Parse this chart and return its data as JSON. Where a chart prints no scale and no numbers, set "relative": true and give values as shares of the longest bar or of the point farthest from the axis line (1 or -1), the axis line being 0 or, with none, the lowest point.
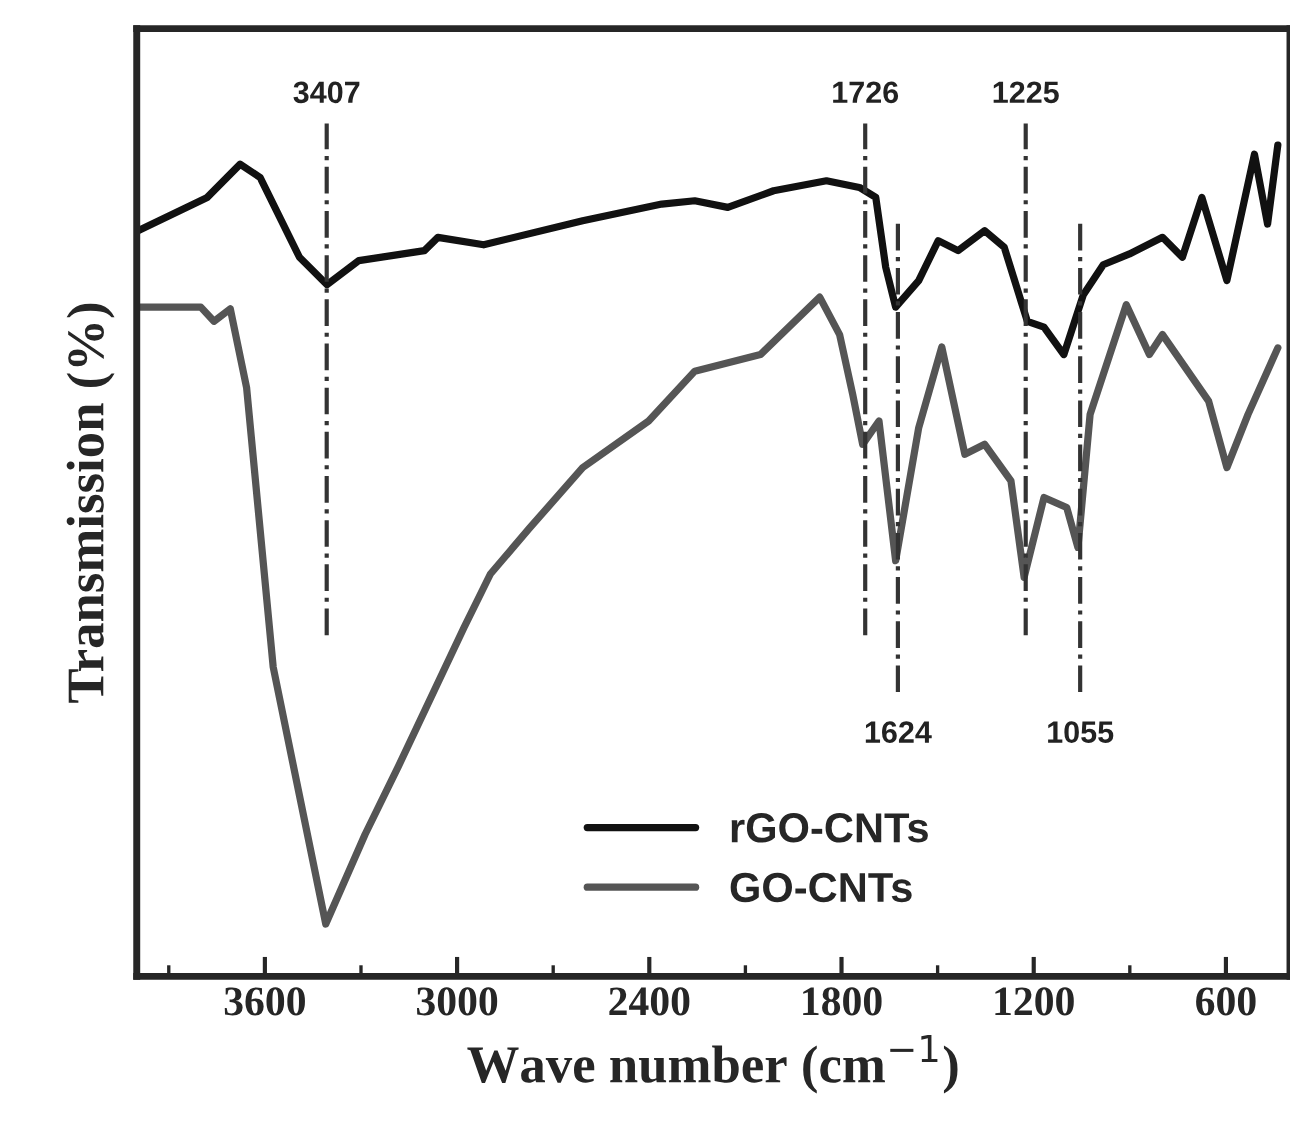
{
  "chart_data": {
    "type": "line",
    "relative": true,
    "xlabel": "Wave number (cm$^{−1}$)",
    "ylabel": "Transmission (%)",
    "xlim": [
      4000,
      400
    ],
    "xticks": [
      3600,
      3000,
      2400,
      1800,
      1200,
      600
    ],
    "legend": "bottom right",
    "grid": false,
    "line_style": "solid",
    "marker": "none",
    "series": [
      {
        "name": "rGO-CNTs",
        "color": "#111111",
        "x": [
          3996,
          3780,
          3677,
          3615,
          3492,
          3406,
          3307,
          3102,
          3060,
          2917,
          2608,
          2361,
          2258,
          2155,
          2012,
          1847,
          1744,
          1693,
          1662,
          1631,
          1559,
          1498,
          1436,
          1353,
          1292,
          1220,
          1168,
          1106,
          1045,
          983,
          901,
          798,
          736,
          675,
          597,
          511,
          470,
          438
        ],
        "values": [
          0.897,
          0.937,
          0.977,
          0.961,
          0.865,
          0.832,
          0.861,
          0.873,
          0.889,
          0.88,
          0.909,
          0.929,
          0.933,
          0.925,
          0.945,
          0.957,
          0.949,
          0.937,
          0.853,
          0.805,
          0.837,
          0.885,
          0.873,
          0.897,
          0.877,
          0.788,
          0.781,
          0.748,
          0.82,
          0.856,
          0.869,
          0.889,
          0.865,
          0.937,
          0.837,
          0.989,
          0.905,
          1.0
        ]
      },
      {
        "name": "GO-CNTs",
        "color": "#555555",
        "x": [
          3996,
          3800,
          3759,
          3708,
          3657,
          3574,
          3410,
          3287,
          3184,
          2978,
          2896,
          2772,
          2608,
          2402,
          2258,
          2053,
          1868,
          1806,
          1765,
          1734,
          1683,
          1631,
          1559,
          1487,
          1415,
          1353,
          1271,
          1230,
          1168,
          1097,
          1062,
          1024,
          911,
          839,
          798,
          654,
          597,
          531,
          438
        ],
        "values": [
          0.805,
          0.805,
          0.788,
          0.803,
          0.708,
          0.372,
          0.063,
          0.171,
          0.252,
          0.42,
          0.484,
          0.54,
          0.612,
          0.668,
          0.728,
          0.748,
          0.817,
          0.772,
          0.7,
          0.64,
          0.668,
          0.5,
          0.66,
          0.757,
          0.628,
          0.64,
          0.596,
          0.48,
          0.576,
          0.564,
          0.516,
          0.676,
          0.808,
          0.748,
          0.772,
          0.692,
          0.612,
          0.676,
          0.756
        ]
      }
    ],
    "ref_lines": [
      {
        "axis": "x",
        "value": 3407,
        "label": "3407",
        "line_style": "dashdot",
        "color": "#333333"
      },
      {
        "axis": "x",
        "value": 1726,
        "label": "1726",
        "line_style": "dashdot",
        "color": "#333333"
      },
      {
        "axis": "x",
        "value": 1624,
        "label": "1624",
        "line_style": "dashdot",
        "color": "#333333"
      },
      {
        "axis": "x",
        "value": 1225,
        "label": "1225",
        "line_style": "dashdot",
        "color": "#333333"
      },
      {
        "axis": "x",
        "value": 1055,
        "label": "1055",
        "line_style": "dashdot",
        "color": "#333333"
      }
    ]
  }
}
